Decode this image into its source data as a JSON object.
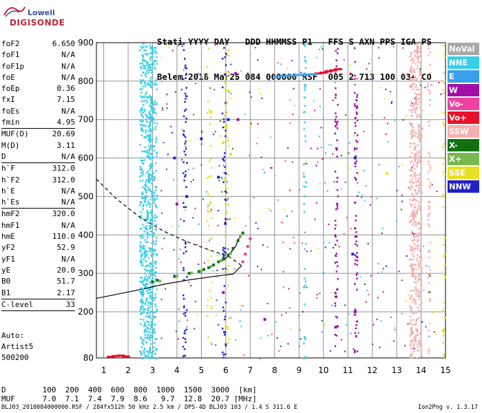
{
  "logo": {
    "brand": "Lowell",
    "product": "DIGISONDE"
  },
  "header": {
    "line1": "Stati YYYY DAY   DDD HHMMSS P1   FFS S AXN PPS IGA PS",
    "line2": "Belem 2018 Mar25 084 000000 RSF  005 2 713 100 03+ C0"
  },
  "params": [
    {
      "name": "foF2",
      "value": "6.650",
      "sep_after": false
    },
    {
      "name": "foF1",
      "value": "N/A",
      "sep_after": false
    },
    {
      "name": "foF1p",
      "value": "N/A",
      "sep_after": false
    },
    {
      "name": "foE",
      "value": "N/A",
      "sep_after": false
    },
    {
      "name": "foEp",
      "value": "0.36",
      "sep_after": false
    },
    {
      "name": "fxI",
      "value": "7.15",
      "sep_after": false
    },
    {
      "name": "foEs",
      "value": "N/A",
      "sep_after": false
    },
    {
      "name": "fmin",
      "value": "4.95",
      "sep_after": true
    },
    {
      "name": "MUF(D)",
      "value": "20.69",
      "sep_after": false
    },
    {
      "name": "M(D)",
      "value": "3.11",
      "sep_after": false
    },
    {
      "name": "D",
      "value": "N/A",
      "sep_after": true
    },
    {
      "name": "h`F",
      "value": "312.0",
      "sep_after": false
    },
    {
      "name": "h`F2",
      "value": "312.0",
      "sep_after": false
    },
    {
      "name": "h`E",
      "value": "N/A",
      "sep_after": false
    },
    {
      "name": "h`Es",
      "value": "N/A",
      "sep_after": true
    },
    {
      "name": "hmF2",
      "value": "320.0",
      "sep_after": false
    },
    {
      "name": "hmF1",
      "value": "N/A",
      "sep_after": false
    },
    {
      "name": "hmE",
      "value": "110.0",
      "sep_after": false
    },
    {
      "name": "yF2",
      "value": "52.9",
      "sep_after": false
    },
    {
      "name": "yF1",
      "value": "N/A",
      "sep_after": false
    },
    {
      "name": "yE",
      "value": "20.0",
      "sep_after": false
    },
    {
      "name": "B0",
      "value": "51.7",
      "sep_after": false
    },
    {
      "name": "B1",
      "value": "2.17",
      "sep_after": true
    },
    {
      "name": "C-level",
      "value": "33",
      "sep_after": true
    }
  ],
  "auto": {
    "line1": "Auto:",
    "line2": "Artist5",
    "line3": "500200"
  },
  "legend": [
    {
      "label": "NoVal",
      "color": "#a8a8a8"
    },
    {
      "label": "NNE",
      "color": "#35d0e8"
    },
    {
      "label": "E",
      "color": "#3aa0ec"
    },
    {
      "label": "W",
      "color": "#a010a8"
    },
    {
      "label": "Vo-",
      "color": "#f040a0"
    },
    {
      "label": "Vo+",
      "color": "#e8102c"
    },
    {
      "label": "SSW",
      "color": "#f4b0b0"
    },
    {
      "label": "X-",
      "color": "#107010"
    },
    {
      "label": "X+",
      "color": "#78b850"
    },
    {
      "label": "SSE",
      "color": "#e8e020"
    },
    {
      "label": "NNW",
      "color": "#2020c8"
    }
  ],
  "chart_data": {
    "type": "scatter",
    "xlim": [
      0.7,
      15.0
    ],
    "ylim": [
      80,
      900
    ],
    "x_ticks": [
      "1",
      "2",
      "3",
      "4",
      "5",
      "6",
      "7",
      "8",
      "9",
      "10",
      "11",
      "12",
      "13",
      "14",
      "15"
    ],
    "y_ticks": [
      "80",
      "200",
      "300",
      "400",
      "500",
      "600",
      "700",
      "800",
      "900"
    ],
    "grid": true,
    "series": [
      {
        "name": "X-",
        "color": "#107010",
        "x": [
          3.0,
          3.2,
          3.9,
          4.5,
          4.9,
          5.1,
          5.3,
          5.5,
          5.7,
          5.9,
          6.1,
          6.3,
          6.5,
          6.7
        ],
        "y": [
          278,
          282,
          292,
          300,
          305,
          310,
          315,
          322,
          330,
          338,
          348,
          365,
          385,
          405
        ]
      },
      {
        "name": "X+",
        "color": "#78b850",
        "x": [
          3.3,
          4.0,
          4.6,
          5.0,
          5.4,
          5.8,
          6.2,
          6.6
        ],
        "y": [
          280,
          293,
          301,
          306,
          318,
          333,
          352,
          395
        ]
      },
      {
        "name": "Vo-",
        "color": "#f040a0",
        "x": [
          6.7,
          6.8,
          6.9,
          7.0
        ],
        "y": [
          330,
          350,
          370,
          390
        ]
      },
      {
        "name": "Vo+",
        "color": "#e8102c",
        "x": [
          9.8,
          10.0,
          10.2,
          10.4,
          10.6,
          1.3,
          1.5,
          1.7,
          1.9
        ],
        "y": [
          820,
          822,
          825,
          828,
          831,
          83,
          85,
          86,
          84
        ]
      },
      {
        "name": "E",
        "color": "#3aa0ec",
        "x": [
          8.1,
          8.4,
          8.7,
          9.0,
          9.3,
          9.6
        ],
        "y": [
          812,
          814,
          815,
          816,
          817,
          818
        ]
      },
      {
        "name": "NNE",
        "color": "#35d0e8",
        "x": [
          2.6,
          2.7,
          2.8,
          2.85,
          2.9,
          2.95,
          3.0
        ],
        "y": [
          250,
          350,
          450,
          550,
          650,
          750,
          880
        ]
      },
      {
        "name": "SSW",
        "color": "#f4b0b0",
        "x": [
          13.6,
          13.65,
          13.7,
          13.75,
          13.8,
          13.85
        ],
        "y": [
          150,
          300,
          450,
          600,
          750,
          880
        ]
      },
      {
        "name": "W",
        "color": "#a010a8",
        "x": [
          6.5,
          6.4,
          7.6,
          10.5,
          11.3,
          5.9,
          4.0
        ],
        "y": [
          700,
          820,
          180,
          160,
          200,
          250,
          480
        ]
      },
      {
        "name": "NNW",
        "color": "#2020c8",
        "x": [
          3.9,
          4.4,
          5.0,
          5.7,
          6.1,
          11.2,
          11.3
        ],
        "y": [
          600,
          500,
          650,
          550,
          700,
          350,
          600
        ]
      },
      {
        "name": "SSE",
        "color": "#e8e020",
        "x": [
          5.4,
          5.9,
          6.2,
          12.6,
          14.9
        ],
        "y": [
          720,
          640,
          610,
          560,
          150
        ]
      }
    ],
    "annotations": {
      "dashed_profile": {
        "x": [
          0.7,
          1.5,
          2.5,
          3.5,
          4.5,
          5.5,
          6.1,
          6.65
        ],
        "y": [
          545,
          495,
          445,
          408,
          380,
          357,
          345,
          320
        ]
      },
      "solid_profile": {
        "x": [
          0.7,
          1.5,
          2.5,
          3.5,
          4.5,
          5.5,
          6.3,
          6.65
        ],
        "y": [
          235,
          245,
          258,
          272,
          283,
          292,
          298,
          320
        ]
      },
      "solid_profile_upper": {
        "x": [
          5.8,
          6.1,
          6.4,
          6.6
        ],
        "y": [
          330,
          345,
          370,
          400
        ]
      }
    }
  },
  "bottom": {
    "d_label": "D",
    "d_values": [
      "100",
      "200",
      "400",
      "600",
      "800",
      "1000",
      "1500",
      "3000",
      "[km]"
    ],
    "muf_label": "MUF",
    "muf_values": [
      "7.0",
      "7.1",
      "7.4",
      "7.9",
      "8.6",
      "9.7",
      "12.8",
      "20.7",
      "[MHz]"
    ]
  },
  "footer": {
    "left": "BLJ03_2018084000000.RSF / 284fx512h 50 kHz 2.5 km / DPS-4D BLJ03 103 / 1.4 S 311.6 E",
    "right": "Ion2Png v. 1.3.17"
  }
}
